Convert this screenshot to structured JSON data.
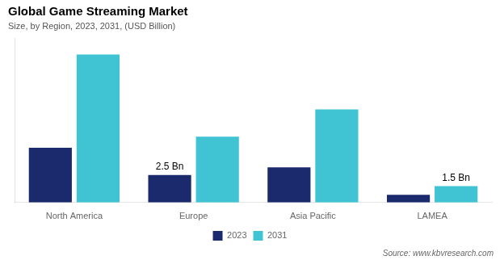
{
  "chart_data": {
    "type": "bar",
    "title": "Global Game Streaming Market",
    "subtitle": "Size, by Region, 2023, 2031, (USD Billion)",
    "source": "Source: www.kbvresearch.com",
    "categories": [
      "North America",
      "Europe",
      "Asia Pacific",
      "LAMEA"
    ],
    "series": [
      {
        "name": "2023",
        "color": "#1a2a6c",
        "values": [
          5.0,
          2.5,
          3.2,
          0.7
        ]
      },
      {
        "name": "2031",
        "color": "#40c4d4",
        "values": [
          13.5,
          6.0,
          8.5,
          1.5
        ]
      }
    ],
    "annotations": [
      {
        "text": "2.5 Bn",
        "category": "Europe",
        "series": "2023"
      },
      {
        "text": "1.5 Bn",
        "category": "LAMEA",
        "series": "2031"
      }
    ],
    "ylim": [
      0,
      15
    ],
    "grid": false,
    "legend": "bottom",
    "tick_labels": "x"
  }
}
